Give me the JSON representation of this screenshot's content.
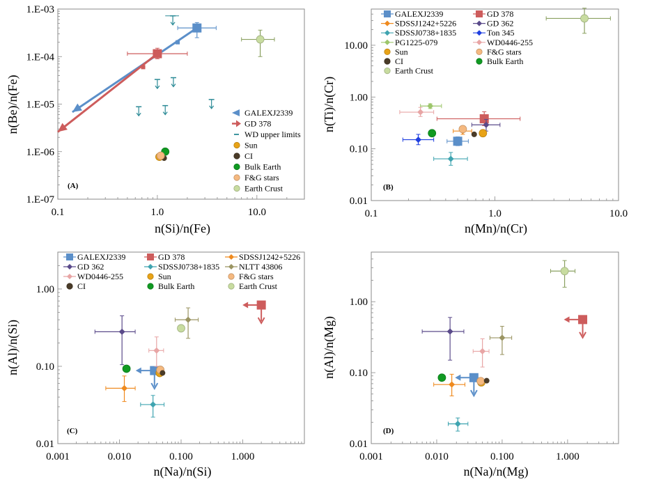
{
  "colors": {
    "GALEXJ2339": "#5b8fc9",
    "GD 378": "#cd5c5c",
    "SDSSJ1242+5226": "#ef8a1e",
    "SDSSJ0738+1835": "#3fa4b0",
    "GD 362": "#5a4a8a",
    "Ton 345": "#1f3fe0",
    "PG1225-079": "#9dc66b",
    "NLTT 43806": "#9a9462",
    "WD0446-255": "#e8a5a5",
    "WD upper limits": "#2b8a96",
    "Sun": "#e8a317",
    "CI": "#4a3b28",
    "Bulk Earth": "#109a22",
    "F&G stars": "#f5b980",
    "Earth Crust": "#c8dca0"
  },
  "chart_data": [
    {
      "type": "scatter",
      "panel_label": "(A)",
      "xlabel": "n(Si)/n(Fe)",
      "ylabel": "n(Be)/n(Fe)",
      "xscale": "log",
      "yscale": "log",
      "xlim": [
        0.1,
        30
      ],
      "ylim": [
        1e-07,
        0.001
      ],
      "x_ticks": [
        0.1,
        1.0,
        10.0
      ],
      "x_tick_labels": [
        "0.1",
        "1.0",
        "10.0"
      ],
      "y_ticks": [
        1e-07,
        1e-06,
        1e-05,
        0.0001,
        0.001
      ],
      "y_tick_labels": [
        "1.E-07",
        "1.E-06",
        "1.E-05",
        "1.E-04",
        "1.E-03"
      ],
      "legend_position": "bottom-right",
      "legend": [
        "GALEXJ2339",
        "GD 378",
        "WD upper limits",
        "Sun",
        "CI",
        "Bulk Earth",
        "F&G stars",
        "Earth Crust"
      ],
      "points": [
        {
          "series": "GALEXJ2339",
          "marker": "square",
          "x": 2.5,
          "y": 0.0004,
          "xerr": [
            1.6,
            3.9
          ],
          "yerr": [
            0.00025,
            0.00052
          ]
        },
        {
          "series": "GALEXJ2339",
          "marker": "smallsquare",
          "x": 1.6,
          "y": 0.0002
        },
        {
          "series": "GD 378",
          "marker": "square",
          "x": 1.0,
          "y": 0.000115,
          "xerr": [
            0.5,
            2.0
          ],
          "yerr": [
            9e-05,
            0.00015
          ]
        },
        {
          "series": "GD 378",
          "marker": "smallsquare",
          "x": 0.72,
          "y": 6e-05
        },
        {
          "series": "Sun",
          "marker": "circle",
          "x": 1.05,
          "y": 7.8e-07
        },
        {
          "series": "CI",
          "marker": "smallcircle",
          "x": 1.17,
          "y": 7.3e-07
        },
        {
          "series": "Bulk Earth",
          "marker": "circle",
          "x": 1.2,
          "y": 1e-06
        },
        {
          "series": "F&G stars",
          "marker": "circle",
          "x": 1.08,
          "y": 8.2e-07
        },
        {
          "series": "Earth Crust",
          "marker": "circle",
          "x": 10.8,
          "y": 0.00023,
          "xerr": [
            7.0,
            15.0
          ],
          "yerr": [
            0.0001,
            0.00036
          ]
        }
      ],
      "lines": [
        {
          "series": "GALEXJ2339",
          "x": [
            2.5,
            0.14
          ],
          "y": [
            0.0004,
            6.8e-06
          ],
          "arrow": true
        },
        {
          "series": "GD 378",
          "x": [
            1.0,
            0.1
          ],
          "y": [
            0.000115,
            2.6e-06
          ],
          "arrow": true
        }
      ],
      "upper_limits": [
        {
          "series": "WD upper limits",
          "x": 1.43,
          "y": 0.00072,
          "xerr": [
            1.2,
            1.65
          ]
        },
        {
          "series": "WD upper limits",
          "x": 1.0,
          "y": 3.3e-05
        },
        {
          "series": "WD upper limits",
          "x": 1.45,
          "y": 3.6e-05
        },
        {
          "series": "WD upper limits",
          "x": 0.65,
          "y": 8.8e-06
        },
        {
          "series": "WD upper limits",
          "x": 1.2,
          "y": 9.3e-06
        },
        {
          "series": "WD upper limits",
          "x": 3.5,
          "y": 1.25e-05
        }
      ]
    },
    {
      "type": "scatter",
      "panel_label": "(B)",
      "xlabel": "n(Mn)/n(Cr)",
      "ylabel": "n(Ti)/n(Cr)",
      "xscale": "log",
      "yscale": "log",
      "xlim": [
        0.1,
        10
      ],
      "ylim": [
        0.01,
        50
      ],
      "x_ticks": [
        0.1,
        1.0,
        10.0
      ],
      "x_tick_labels": [
        "0.1",
        "1.0",
        "10.0"
      ],
      "y_ticks": [
        0.01,
        0.1,
        1.0,
        10.0
      ],
      "y_tick_labels": [
        "0.01",
        "0.10",
        "1.00",
        "10.00"
      ],
      "legend_position": "top-left",
      "legend": [
        "GALEXJ2339",
        "GD 378",
        "SDSSJ1242+5226",
        "GD 362",
        "SDSSJ0738+1835",
        "Ton 345",
        "PG1225-079",
        "WD0446-255",
        "Sun",
        "F&G stars",
        "CI",
        "Bulk Earth",
        "Earth Crust"
      ],
      "points": [
        {
          "series": "GALEXJ2339",
          "marker": "square",
          "x": 0.5,
          "y": 0.14,
          "xerr": [
            0.41,
            0.61
          ],
          "yerr": [
            0.115,
            0.17
          ]
        },
        {
          "series": "GD 378",
          "marker": "square",
          "x": 0.82,
          "y": 0.38,
          "xerr": [
            0.34,
            1.6
          ],
          "yerr": [
            0.28,
            0.52
          ]
        },
        {
          "series": "SDSSJ1242+5226",
          "marker": "diamond",
          "x": 0.55,
          "y": 0.22,
          "xerr": [
            0.46,
            0.65
          ],
          "yerr": [
            0.19,
            0.25
          ]
        },
        {
          "series": "GD 362",
          "marker": "diamond",
          "x": 0.85,
          "y": 0.29,
          "xerr": [
            0.65,
            1.1
          ],
          "yerr": [
            0.22,
            0.37
          ]
        },
        {
          "series": "SDSSJ0738+1835",
          "marker": "diamond",
          "x": 0.44,
          "y": 0.064,
          "xerr": [
            0.32,
            0.6
          ],
          "yerr": [
            0.048,
            0.085
          ]
        },
        {
          "series": "Ton 345",
          "marker": "diamond",
          "x": 0.24,
          "y": 0.15,
          "xerr": [
            0.18,
            0.32
          ],
          "yerr": [
            0.12,
            0.19
          ]
        },
        {
          "series": "PG1225-079",
          "marker": "diamond",
          "x": 0.3,
          "y": 0.67,
          "xerr": [
            0.25,
            0.37
          ],
          "yerr": [
            0.6,
            0.74
          ]
        },
        {
          "series": "WD0446-255",
          "marker": "diamond",
          "x": 0.25,
          "y": 0.51,
          "xerr": [
            0.17,
            0.32
          ],
          "yerr": [
            0.42,
            0.63
          ]
        },
        {
          "series": "Sun",
          "marker": "circle",
          "x": 0.8,
          "y": 0.2
        },
        {
          "series": "F&G stars",
          "marker": "circle",
          "x": 0.55,
          "y": 0.24
        },
        {
          "series": "CI",
          "marker": "smallcircle",
          "x": 0.68,
          "y": 0.19
        },
        {
          "series": "Bulk Earth",
          "marker": "circle",
          "x": 0.31,
          "y": 0.2
        },
        {
          "series": "Earth Crust",
          "marker": "circle",
          "x": 5.3,
          "y": 33,
          "xerr": [
            2.6,
            8.6
          ],
          "yerr": [
            17,
            52
          ]
        }
      ]
    },
    {
      "type": "scatter",
      "panel_label": "(C)",
      "xlabel": "n(Na)/n(Si)",
      "ylabel": "n(Al)/n(Si)",
      "xscale": "log",
      "yscale": "log",
      "xlim": [
        0.001,
        10
      ],
      "ylim": [
        0.01,
        3
      ],
      "x_ticks": [
        0.001,
        0.01,
        0.1,
        1.0
      ],
      "x_tick_labels": [
        "0.001",
        "0.010",
        "0.100",
        "1.000"
      ],
      "y_ticks": [
        0.01,
        0.1,
        1.0
      ],
      "y_tick_labels": [
        "0.01",
        "0.10",
        "1.00"
      ],
      "legend_position": "top",
      "legend": [
        "GALEXJ2339",
        "GD 378",
        "SDSSJ1242+5226",
        "GD 362",
        "SDSSJ0738+1835",
        "NLTT 43806",
        "WD0446-255",
        "Sun",
        "F&G stars",
        "CI",
        "Bulk Earth",
        "Earth Crust"
      ],
      "points": [
        {
          "series": "GALEXJ2339",
          "marker": "square",
          "x": 0.037,
          "y": 0.088,
          "limit_x": "left",
          "limit_y": "down"
        },
        {
          "series": "GD 378",
          "marker": "square",
          "x": 2.0,
          "y": 0.62,
          "limit_x": "left",
          "limit_y": "down"
        },
        {
          "series": "SDSSJ1242+5226",
          "marker": "diamond",
          "x": 0.012,
          "y": 0.052,
          "xerr": [
            0.006,
            0.018
          ],
          "yerr": [
            0.035,
            0.075
          ]
        },
        {
          "series": "GD 362",
          "marker": "diamond",
          "x": 0.011,
          "y": 0.28,
          "xerr": [
            0.004,
            0.018
          ],
          "yerr": [
            0.105,
            0.45
          ]
        },
        {
          "series": "SDSSJ0738+1835",
          "marker": "diamond",
          "x": 0.035,
          "y": 0.032,
          "xerr": [
            0.022,
            0.053
          ],
          "yerr": [
            0.022,
            0.042
          ]
        },
        {
          "series": "NLTT 43806",
          "marker": "diamond",
          "x": 0.13,
          "y": 0.4,
          "xerr": [
            0.08,
            0.19
          ],
          "yerr": [
            0.23,
            0.57
          ]
        },
        {
          "series": "WD0446-255",
          "marker": "diamond",
          "x": 0.04,
          "y": 0.16,
          "xerr": [
            0.03,
            0.052
          ],
          "yerr": [
            0.1,
            0.24
          ]
        },
        {
          "series": "Sun",
          "marker": "circle",
          "x": 0.045,
          "y": 0.082
        },
        {
          "series": "F&G stars",
          "marker": "circle",
          "x": 0.046,
          "y": 0.09
        },
        {
          "series": "CI",
          "marker": "smallcircle",
          "x": 0.05,
          "y": 0.082
        },
        {
          "series": "Bulk Earth",
          "marker": "circle",
          "x": 0.013,
          "y": 0.093
        },
        {
          "series": "Earth Crust",
          "marker": "circle",
          "x": 0.1,
          "y": 0.31
        }
      ]
    },
    {
      "type": "scatter",
      "panel_label": "(D)",
      "xlabel": "n(Na)/n(Mg)",
      "ylabel": "n(Al)/n(Mg)",
      "xscale": "log",
      "yscale": "log",
      "xlim": [
        0.001,
        6
      ],
      "ylim": [
        0.01,
        5
      ],
      "x_ticks": [
        0.001,
        0.01,
        0.1,
        1.0
      ],
      "x_tick_labels": [
        "0.001",
        "0.010",
        "0.100",
        "1.000"
      ],
      "y_ticks": [
        0.01,
        0.1,
        1.0
      ],
      "y_tick_labels": [
        "0.01",
        "0.10",
        "1.00"
      ],
      "legend_position": "none",
      "legend": [],
      "points": [
        {
          "series": "GALEXJ2339",
          "marker": "square",
          "x": 0.037,
          "y": 0.085,
          "limit_x": "left",
          "limit_y": "down"
        },
        {
          "series": "GD 378",
          "marker": "square",
          "x": 1.7,
          "y": 0.56,
          "limit_x": "left",
          "limit_y": "down"
        },
        {
          "series": "SDSSJ1242+5226",
          "marker": "diamond",
          "x": 0.017,
          "y": 0.068,
          "xerr": [
            0.009,
            0.027
          ],
          "yerr": [
            0.047,
            0.095
          ]
        },
        {
          "series": "GD 362",
          "marker": "diamond",
          "x": 0.016,
          "y": 0.38,
          "xerr": [
            0.006,
            0.026
          ],
          "yerr": [
            0.15,
            0.6
          ]
        },
        {
          "series": "SDSSJ0738+1835",
          "marker": "diamond",
          "x": 0.021,
          "y": 0.019,
          "xerr": [
            0.015,
            0.03
          ],
          "yerr": [
            0.015,
            0.023
          ]
        },
        {
          "series": "NLTT 43806",
          "marker": "diamond",
          "x": 0.1,
          "y": 0.31,
          "xerr": [
            0.065,
            0.14
          ],
          "yerr": [
            0.18,
            0.45
          ]
        },
        {
          "series": "WD0446-255",
          "marker": "diamond",
          "x": 0.05,
          "y": 0.2,
          "xerr": [
            0.036,
            0.063
          ],
          "yerr": [
            0.12,
            0.3
          ]
        },
        {
          "series": "Sun",
          "marker": "circle",
          "x": 0.048,
          "y": 0.073
        },
        {
          "series": "F&G stars",
          "marker": "circle",
          "x": 0.047,
          "y": 0.076
        },
        {
          "series": "CI",
          "marker": "smallcircle",
          "x": 0.058,
          "y": 0.077
        },
        {
          "series": "Bulk Earth",
          "marker": "circle",
          "x": 0.012,
          "y": 0.085
        },
        {
          "series": "Earth Crust",
          "marker": "circle",
          "x": 0.9,
          "y": 2.7,
          "xerr": [
            0.55,
            1.3
          ],
          "yerr": [
            1.6,
            3.8
          ]
        }
      ]
    }
  ]
}
